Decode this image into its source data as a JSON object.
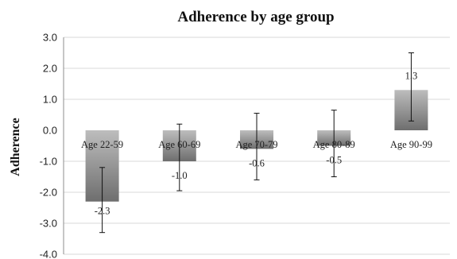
{
  "chart_data": {
    "type": "bar",
    "title": "Adherence by age group",
    "xlabel": "",
    "ylabel": "Adherence",
    "categories": [
      "Age 22-59",
      "Age 60-69",
      "Age 70-79",
      "Age 80-89",
      "Age 90-99"
    ],
    "values": [
      -2.3,
      -1.0,
      -0.6,
      -0.5,
      1.3
    ],
    "value_labels": [
      "-2.3",
      "-1.0",
      "-0.6",
      "-0.5",
      "1.3"
    ],
    "error_low": [
      -3.3,
      -1.95,
      -1.6,
      -1.5,
      0.3
    ],
    "error_high": [
      -1.2,
      0.2,
      0.55,
      0.65,
      2.5
    ],
    "ylim": [
      -4.0,
      3.0
    ],
    "yticks": [
      3.0,
      2.0,
      1.0,
      0.0,
      -1.0,
      -2.0,
      -3.0,
      -4.0
    ],
    "ytick_labels": [
      "3.0",
      "2.0",
      "1.0",
      "0.0",
      "-1.0",
      "-2.0",
      "-3.0",
      "-4.0"
    ],
    "grid": true,
    "legend": "none",
    "colors": {
      "bar_dark": "#707070",
      "bar_light": "#b8b8b8",
      "grid": "#d9d9d9"
    }
  }
}
